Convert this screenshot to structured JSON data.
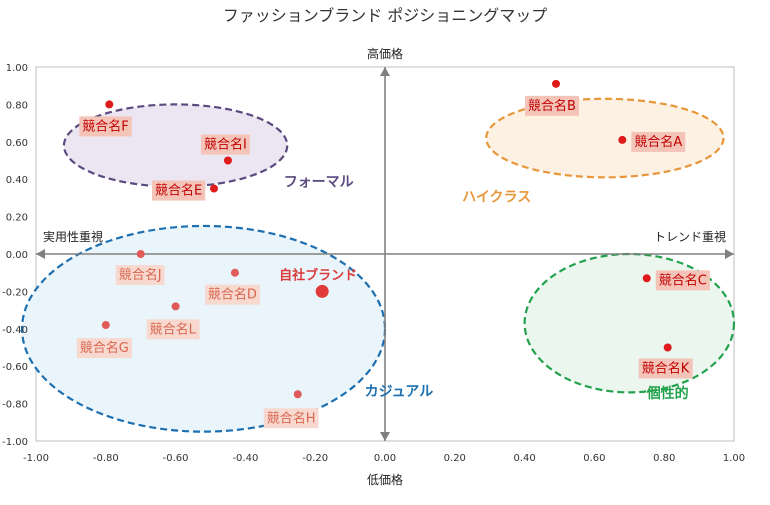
{
  "chart_data": {
    "type": "scatter",
    "title": "ファッションブランド ポジショニングマップ",
    "xlim": [
      -1.0,
      1.0
    ],
    "ylim": [
      -1.0,
      1.0
    ],
    "x_ticks": [
      "-1.00",
      "-0.80",
      "-0.60",
      "-0.40",
      "-0.20",
      "0.00",
      "0.20",
      "0.40",
      "0.60",
      "0.80",
      "1.00"
    ],
    "y_ticks": [
      "1.00",
      "0.80",
      "0.60",
      "0.40",
      "0.20",
      "0.00",
      "-0.20",
      "-0.40",
      "-0.60",
      "-0.80",
      "-1.00"
    ],
    "axis_labels": {
      "top": "高価格",
      "bottom": "低価格",
      "left": "実用性重視",
      "right": "トレンド重視"
    },
    "groups": [
      {
        "label": "フォーマル",
        "color": "#5b4a7f",
        "fill": "#ebe6f1",
        "center": [
          -0.6,
          0.58
        ],
        "radius": [
          0.32,
          0.22
        ]
      },
      {
        "label": "ハイクラス",
        "color": "#e8963a",
        "fill": "#fdf1e4",
        "center": [
          0.63,
          0.62
        ],
        "radius": [
          0.34,
          0.21
        ]
      },
      {
        "label": "カジュアル",
        "color": "#1c6fb0",
        "fill": "#eaf4fb",
        "center": [
          -0.52,
          -0.4
        ],
        "radius": [
          0.52,
          0.55
        ]
      },
      {
        "label": "個性的",
        "color": "#22a24c",
        "fill": "#eaf6ee",
        "center": [
          0.7,
          -0.37
        ],
        "radius": [
          0.3,
          0.37
        ]
      }
    ],
    "points": [
      {
        "name": "競合名A",
        "x": 0.68,
        "y": 0.61,
        "strong": true
      },
      {
        "name": "競合名B",
        "x": 0.49,
        "y": 0.91,
        "strong": true
      },
      {
        "name": "競合名C",
        "x": 0.75,
        "y": -0.13,
        "strong": true
      },
      {
        "name": "競合名D",
        "x": -0.43,
        "y": -0.1,
        "strong": false
      },
      {
        "name": "競合名E",
        "x": -0.49,
        "y": 0.35,
        "strong": true
      },
      {
        "name": "競合名F",
        "x": -0.79,
        "y": 0.8,
        "strong": true
      },
      {
        "name": "競合名G",
        "x": -0.8,
        "y": -0.38,
        "strong": false
      },
      {
        "name": "競合名H",
        "x": -0.25,
        "y": -0.75,
        "strong": false
      },
      {
        "name": "競合名I",
        "x": -0.45,
        "y": 0.5,
        "strong": true
      },
      {
        "name": "競合名J",
        "x": -0.7,
        "y": 0.0,
        "strong": false
      },
      {
        "name": "競合名K",
        "x": 0.81,
        "y": -0.5,
        "strong": true
      },
      {
        "name": "競合名L",
        "x": -0.6,
        "y": -0.28,
        "strong": false
      },
      {
        "name": "自社ブランド",
        "x": -0.18,
        "y": -0.2,
        "self": true
      }
    ]
  }
}
